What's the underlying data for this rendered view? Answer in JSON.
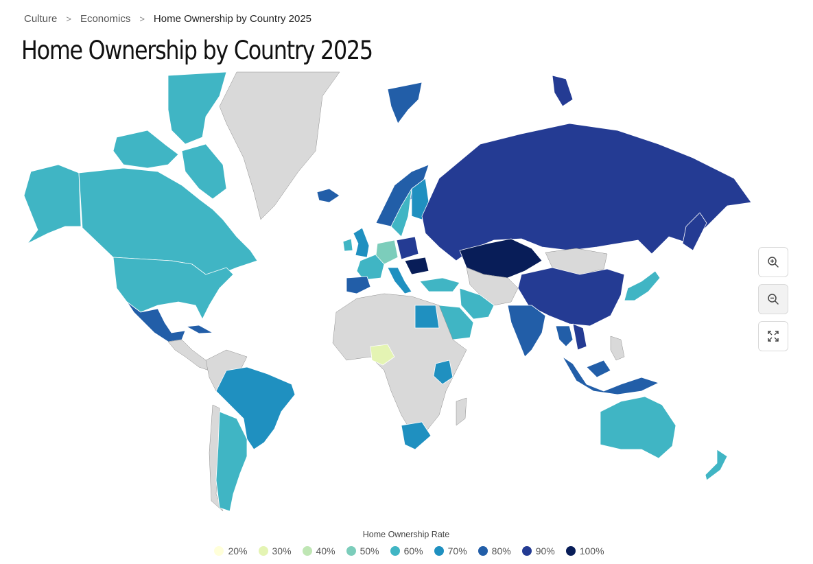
{
  "breadcrumb": {
    "items": [
      {
        "label": "Culture",
        "link": true
      },
      {
        "label": "Economics",
        "link": true
      },
      {
        "label": "Home Ownership by Country 2025",
        "link": false
      }
    ],
    "separator": ">"
  },
  "page_title": "Home Ownership by Country 2025",
  "legend": {
    "title": "Home Ownership Rate",
    "items": [
      {
        "label": "20%",
        "color": "#ffffd9"
      },
      {
        "label": "30%",
        "color": "#e4f4b3"
      },
      {
        "label": "40%",
        "color": "#bfe6b4"
      },
      {
        "label": "50%",
        "color": "#7ccdbb"
      },
      {
        "label": "60%",
        "color": "#40b5c4"
      },
      {
        "label": "70%",
        "color": "#1f90c0"
      },
      {
        "label": "80%",
        "color": "#225ea8"
      },
      {
        "label": "90%",
        "color": "#243b93"
      },
      {
        "label": "100%",
        "color": "#081d58"
      }
    ]
  },
  "colors": {
    "no_data": "#d9d9d9",
    "background": "#ffffff"
  },
  "zoom_controls": [
    {
      "name": "zoom-in",
      "icon": "zoom-in-icon"
    },
    {
      "name": "zoom-out",
      "icon": "zoom-out-icon"
    },
    {
      "name": "fullscreen",
      "icon": "expand-icon"
    }
  ],
  "map": {
    "projection": "mercator-style world map",
    "regions": [
      {
        "name": "Canada",
        "color": "#40b5c4"
      },
      {
        "name": "Alaska (USA)",
        "color": "#40b5c4"
      },
      {
        "name": "United States",
        "color": "#40b5c4"
      },
      {
        "name": "Greenland",
        "color": "#d9d9d9"
      },
      {
        "name": "Mexico",
        "color": "#225ea8"
      },
      {
        "name": "Cuba",
        "color": "#225ea8"
      },
      {
        "name": "Central America",
        "color": "#d9d9d9"
      },
      {
        "name": "Brazil",
        "color": "#1f90c0"
      },
      {
        "name": "Argentina",
        "color": "#40b5c4"
      },
      {
        "name": "Chile",
        "color": "#d9d9d9"
      },
      {
        "name": "Rest of South America",
        "color": "#d9d9d9"
      },
      {
        "name": "Iceland",
        "color": "#225ea8"
      },
      {
        "name": "Norway",
        "color": "#225ea8"
      },
      {
        "name": "Sweden",
        "color": "#40b5c4"
      },
      {
        "name": "Finland",
        "color": "#1f90c0"
      },
      {
        "name": "United Kingdom",
        "color": "#1f90c0"
      },
      {
        "name": "Ireland",
        "color": "#40b5c4"
      },
      {
        "name": "France",
        "color": "#40b5c4"
      },
      {
        "name": "Spain",
        "color": "#225ea8"
      },
      {
        "name": "Germany",
        "color": "#7ccdbb"
      },
      {
        "name": "Italy",
        "color": "#1f90c0"
      },
      {
        "name": "Poland",
        "color": "#243b93"
      },
      {
        "name": "Romania",
        "color": "#081d58"
      },
      {
        "name": "Turkey",
        "color": "#40b5c4"
      },
      {
        "name": "Russia",
        "color": "#243b93"
      },
      {
        "name": "Kazakhstan",
        "color": "#081d58"
      },
      {
        "name": "Mongolia",
        "color": "#d9d9d9"
      },
      {
        "name": "China",
        "color": "#243b93"
      },
      {
        "name": "Japan",
        "color": "#40b5c4"
      },
      {
        "name": "India",
        "color": "#225ea8"
      },
      {
        "name": "Iran",
        "color": "#40b5c4"
      },
      {
        "name": "Saudi Arabia",
        "color": "#40b5c4"
      },
      {
        "name": "Egypt",
        "color": "#1f90c0"
      },
      {
        "name": "Nigeria",
        "color": "#e4f4b3"
      },
      {
        "name": "Kenya",
        "color": "#1f90c0"
      },
      {
        "name": "South Africa",
        "color": "#1f90c0"
      },
      {
        "name": "Rest of Africa",
        "color": "#d9d9d9"
      },
      {
        "name": "Thailand",
        "color": "#225ea8"
      },
      {
        "name": "Vietnam",
        "color": "#243b93"
      },
      {
        "name": "Malaysia",
        "color": "#225ea8"
      },
      {
        "name": "Indonesia",
        "color": "#225ea8"
      },
      {
        "name": "Philippines",
        "color": "#d9d9d9"
      },
      {
        "name": "Australia",
        "color": "#40b5c4"
      },
      {
        "name": "New Zealand",
        "color": "#40b5c4"
      }
    ]
  }
}
